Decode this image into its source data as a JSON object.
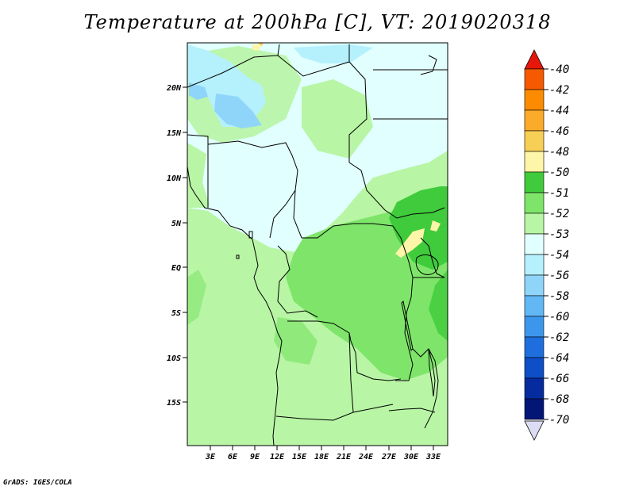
{
  "title": "Temperature at 200hPa [C], VT: 2019020318",
  "credit": "GrADS: IGES/COLA",
  "lat_ticks": [
    "20N",
    "15N",
    "10N",
    "5N",
    "EQ",
    "5S",
    "10S",
    "15S"
  ],
  "lon_ticks": [
    "3E",
    "6E",
    "9E",
    "12E",
    "15E",
    "18E",
    "21E",
    "24E",
    "27E",
    "30E",
    "33E"
  ],
  "colorbar": {
    "levels": [
      "-40",
      "-42",
      "-44",
      "-46",
      "-48",
      "-50",
      "-51",
      "-52",
      "-53",
      "-54",
      "-56",
      "-58",
      "-60",
      "-62",
      "-64",
      "-66",
      "-68",
      "-70"
    ],
    "colors": [
      "#f02a00",
      "#f55a00",
      "#fb8b00",
      "#fbab2a",
      "#f8cf55",
      "#fdf5a7",
      "#3fcb3b",
      "#7ee56a",
      "#b8f5a5",
      "#e1fffe",
      "#b5f0fd",
      "#8ed5f9",
      "#62b8f4",
      "#3c97ec",
      "#1e6fdd",
      "#0e4ec7",
      "#062b9e",
      "#031675"
    ],
    "top_color": "#e6160a",
    "bottom_color": "#dcdcf5"
  },
  "colors": {
    "land_green": "#b8f5a5",
    "mid_green": "#7ee56a",
    "dark_green": "#3fcb3b",
    "light_cyan": "#e1fffe",
    "sky_blue": "#b5f0fd",
    "blue": "#8ed5f9",
    "pale_yellow": "#fdf5a7"
  }
}
